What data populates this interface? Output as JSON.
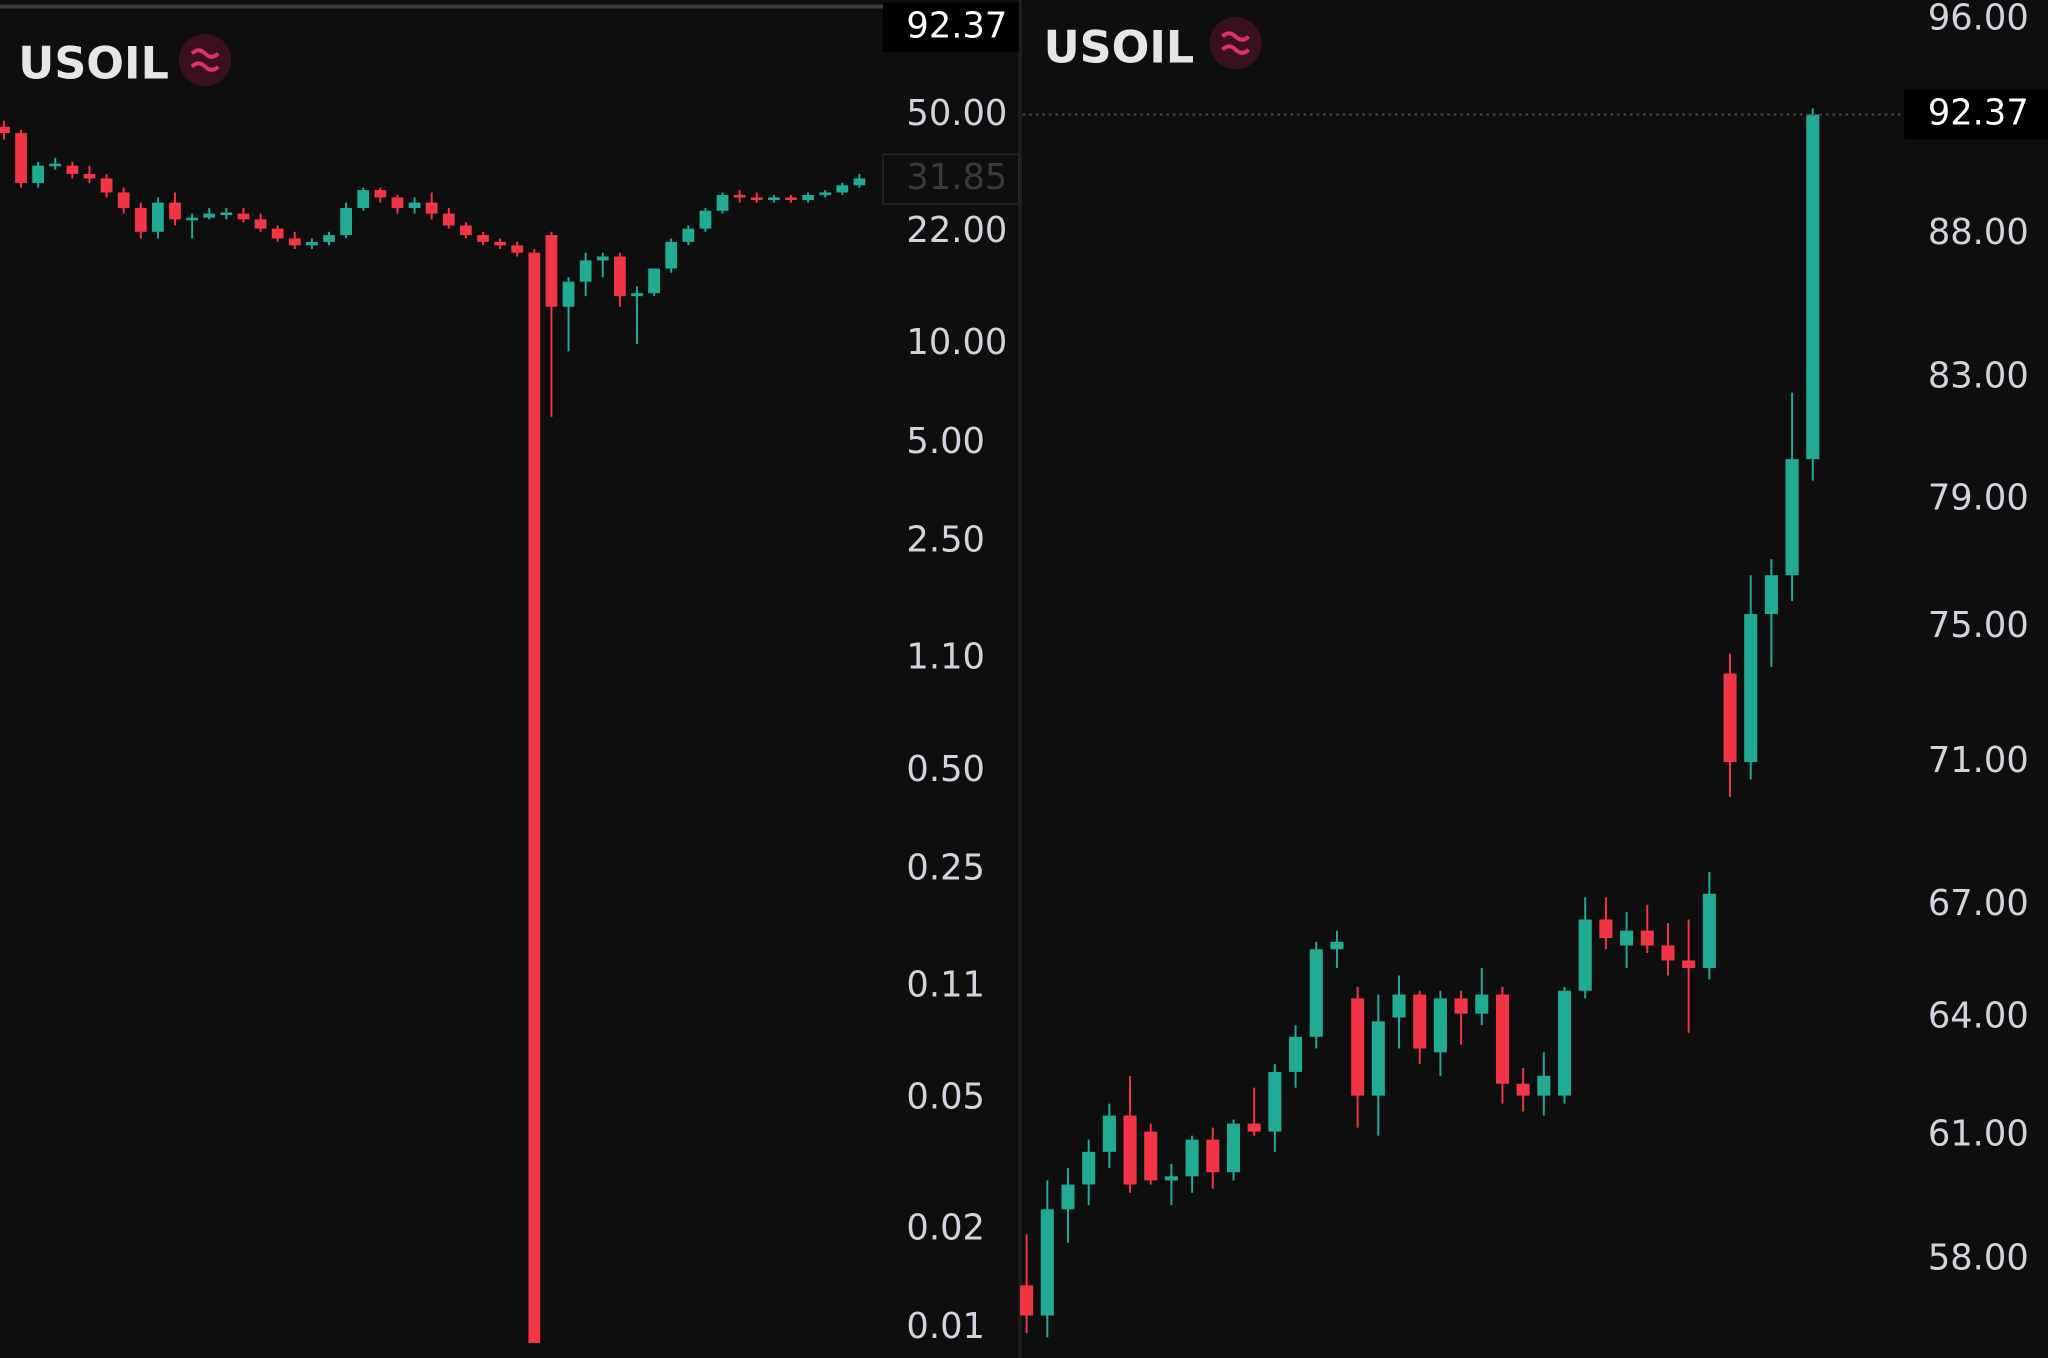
{
  "chart_data": [
    {
      "type": "candlestick",
      "title": "USOIL",
      "log_scale": true,
      "up_color": "#22ab94",
      "down_color": "#f23645",
      "ylim": [
        0.0081,
        112
      ],
      "yticks": [
        {
          "value": 50,
          "label": "50.00"
        },
        {
          "value": 22,
          "label": "22.00"
        },
        {
          "value": 10,
          "label": "10.00"
        },
        {
          "value": 5,
          "label": "5.00"
        },
        {
          "value": 2.5,
          "label": "2.50"
        },
        {
          "value": 1.1,
          "label": "1.10"
        },
        {
          "value": 0.5,
          "label": "0.50"
        },
        {
          "value": 0.25,
          "label": "0.25"
        },
        {
          "value": 0.11,
          "label": "0.11"
        },
        {
          "value": 0.05,
          "label": "0.05"
        },
        {
          "value": 0.02,
          "label": "0.02"
        },
        {
          "value": 0.01,
          "label": "0.01"
        }
      ],
      "price_tags": [
        92.37,
        31.85
      ],
      "ohlc": [
        [
          46,
          48,
          42,
          44
        ],
        [
          44,
          45,
          30,
          31
        ],
        [
          31,
          36,
          30,
          35
        ],
        [
          35,
          37,
          34,
          35.5
        ],
        [
          35,
          36,
          32,
          33
        ],
        [
          33,
          35,
          31,
          32
        ],
        [
          32,
          33,
          28,
          29
        ],
        [
          29,
          30,
          25,
          26
        ],
        [
          26,
          27,
          21,
          22
        ],
        [
          22,
          28,
          21,
          27
        ],
        [
          27,
          29,
          23,
          24
        ],
        [
          24,
          25,
          21,
          24.3
        ],
        [
          24.3,
          26,
          24,
          25
        ],
        [
          25,
          26,
          24,
          25.2
        ],
        [
          25,
          26,
          23.5,
          24
        ],
        [
          24,
          25,
          22,
          22.5
        ],
        [
          22.5,
          23,
          20.5,
          21
        ],
        [
          21,
          22,
          19.5,
          20
        ],
        [
          20,
          21,
          19.5,
          20.5
        ],
        [
          20.5,
          22,
          20,
          21.5
        ],
        [
          21.5,
          27,
          21,
          26
        ],
        [
          26,
          30,
          25.5,
          29.5
        ],
        [
          29.5,
          30,
          27,
          28
        ],
        [
          28,
          28.5,
          25,
          26
        ],
        [
          26,
          28,
          25,
          27
        ],
        [
          27,
          29,
          24,
          25
        ],
        [
          25,
          26,
          22.5,
          23
        ],
        [
          23,
          23.5,
          21,
          21.5
        ],
        [
          21.5,
          22,
          20,
          20.5
        ],
        [
          20.5,
          21,
          19.5,
          20
        ],
        [
          20,
          20.5,
          18.5,
          19
        ],
        [
          19,
          19.5,
          0.009,
          0.009
        ],
        [
          21.5,
          22,
          6,
          13
        ],
        [
          13,
          16,
          9.5,
          15.5
        ],
        [
          15.5,
          19,
          14,
          18
        ],
        [
          18,
          19,
          16,
          18.5
        ],
        [
          18.5,
          19,
          13,
          14
        ],
        [
          14,
          15,
          10,
          14.3
        ],
        [
          14.3,
          17,
          14,
          17
        ],
        [
          17,
          21,
          16.5,
          20.5
        ],
        [
          20.5,
          23,
          20,
          22.5
        ],
        [
          22.5,
          26,
          22,
          25.5
        ],
        [
          25.5,
          29,
          25,
          28.5
        ],
        [
          28.5,
          29.5,
          27,
          28
        ],
        [
          28,
          29,
          27,
          27.5
        ],
        [
          27.5,
          28.5,
          27,
          28
        ],
        [
          28,
          28.5,
          27,
          27.5
        ],
        [
          27.5,
          29,
          27,
          28.5
        ],
        [
          28.5,
          29.5,
          28,
          29
        ],
        [
          29,
          31,
          28.5,
          30.5
        ],
        [
          30.5,
          33,
          30,
          32
        ]
      ]
    },
    {
      "type": "candlestick",
      "title": "USOIL",
      "log_scale": true,
      "up_color": "#22ab94",
      "down_color": "#f23645",
      "ylim": [
        55.73,
        96.77
      ],
      "yticks": [
        {
          "value": 96,
          "label": "96.00"
        },
        {
          "value": 88,
          "label": "88.00"
        },
        {
          "value": 83,
          "label": "83.00"
        },
        {
          "value": 79,
          "label": "79.00"
        },
        {
          "value": 75,
          "label": "75.00"
        },
        {
          "value": 71,
          "label": "71.00"
        },
        {
          "value": 67,
          "label": "67.00"
        },
        {
          "value": 64,
          "label": "64.00"
        },
        {
          "value": 61,
          "label": "61.00"
        },
        {
          "value": 58,
          "label": "58.00"
        }
      ],
      "price_tags": [
        92.37
      ],
      "ohlc": [
        [
          57.4,
          58.6,
          56.3,
          56.7
        ],
        [
          56.7,
          59.9,
          56.2,
          59.2
        ],
        [
          59.2,
          60.2,
          58.4,
          59.8
        ],
        [
          59.8,
          60.9,
          59.3,
          60.6
        ],
        [
          60.6,
          61.8,
          60.2,
          61.5
        ],
        [
          61.5,
          62.5,
          59.6,
          59.8
        ],
        [
          61.1,
          61.3,
          59.8,
          59.9
        ],
        [
          59.9,
          60.3,
          59.3,
          60.0
        ],
        [
          60.0,
          61.0,
          59.6,
          60.9
        ],
        [
          60.9,
          61.2,
          59.7,
          60.1
        ],
        [
          60.1,
          61.4,
          59.9,
          61.3
        ],
        [
          61.3,
          62.2,
          61.0,
          61.1
        ],
        [
          61.1,
          62.8,
          60.6,
          62.6
        ],
        [
          62.6,
          63.8,
          62.2,
          63.5
        ],
        [
          63.5,
          66.0,
          63.2,
          65.8
        ],
        [
          65.8,
          66.3,
          65.3,
          66.0
        ],
        [
          64.5,
          64.8,
          61.2,
          62.0
        ],
        [
          62.0,
          64.6,
          61.0,
          63.9
        ],
        [
          64.0,
          65.1,
          63.2,
          64.6
        ],
        [
          64.6,
          64.7,
          62.8,
          63.2
        ],
        [
          63.1,
          64.7,
          62.5,
          64.5
        ],
        [
          64.5,
          64.7,
          63.3,
          64.1
        ],
        [
          64.1,
          65.3,
          63.8,
          64.6
        ],
        [
          64.6,
          64.8,
          61.8,
          62.3
        ],
        [
          62.3,
          62.7,
          61.6,
          62.0
        ],
        [
          62.0,
          63.1,
          61.5,
          62.5
        ],
        [
          62.0,
          64.8,
          61.8,
          64.7
        ],
        [
          64.7,
          67.2,
          64.5,
          66.6
        ],
        [
          66.6,
          67.2,
          65.8,
          66.1
        ],
        [
          65.9,
          66.8,
          65.3,
          66.3
        ],
        [
          66.3,
          67.0,
          65.7,
          65.9
        ],
        [
          65.9,
          66.5,
          65.1,
          65.5
        ],
        [
          65.5,
          66.6,
          63.6,
          65.3
        ],
        [
          65.3,
          67.9,
          65.0,
          67.3
        ],
        [
          73.6,
          74.2,
          70.0,
          71.0
        ],
        [
          71.0,
          76.6,
          70.5,
          75.4
        ],
        [
          75.4,
          77.1,
          73.8,
          76.6
        ],
        [
          76.6,
          82.5,
          75.8,
          80.3
        ],
        [
          80.3,
          92.6,
          79.6,
          92.37
        ]
      ]
    }
  ]
}
